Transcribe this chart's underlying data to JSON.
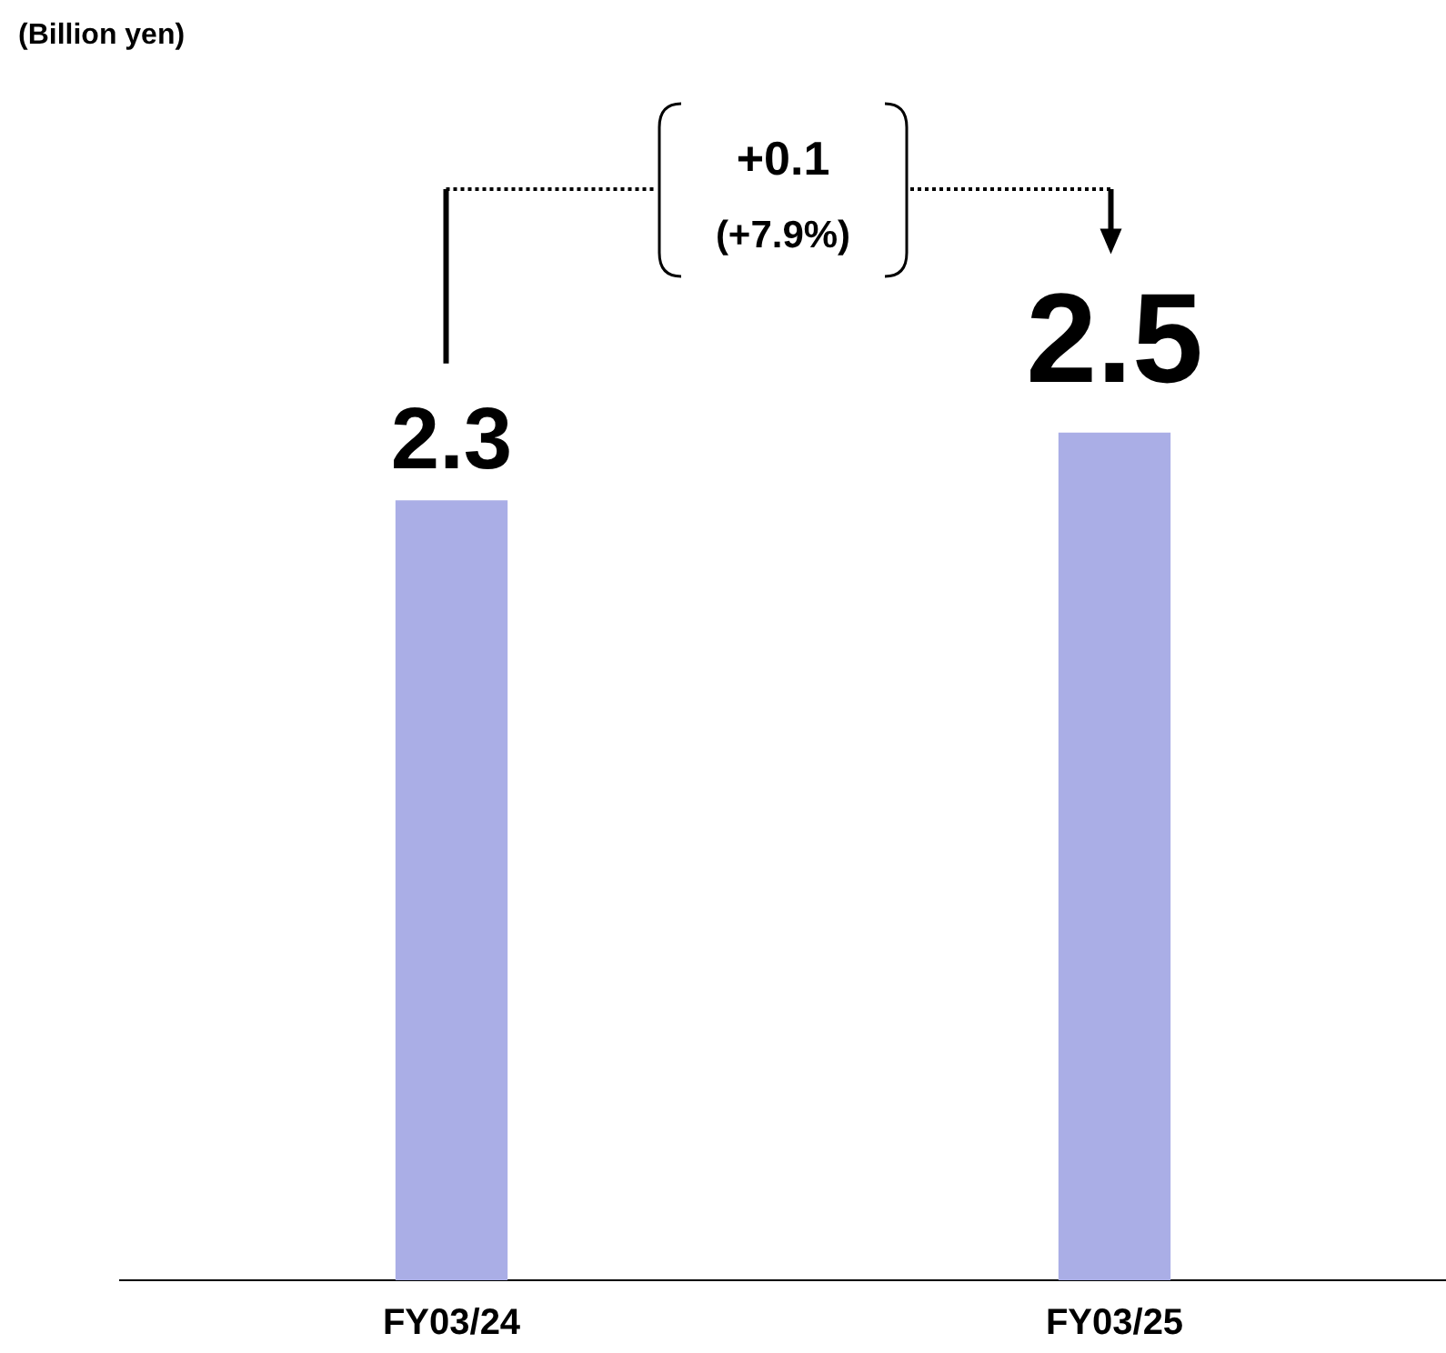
{
  "chart_data": {
    "type": "bar",
    "categories": [
      "FY03/24",
      "FY03/25"
    ],
    "values": [
      2.3,
      2.5
    ],
    "color": "#aaaee6",
    "data_labels": true,
    "legend": false,
    "tick_labels": "x",
    "annotations": [
      "(Billion yen)",
      "+0.1",
      "(+7.9%)"
    ]
  }
}
